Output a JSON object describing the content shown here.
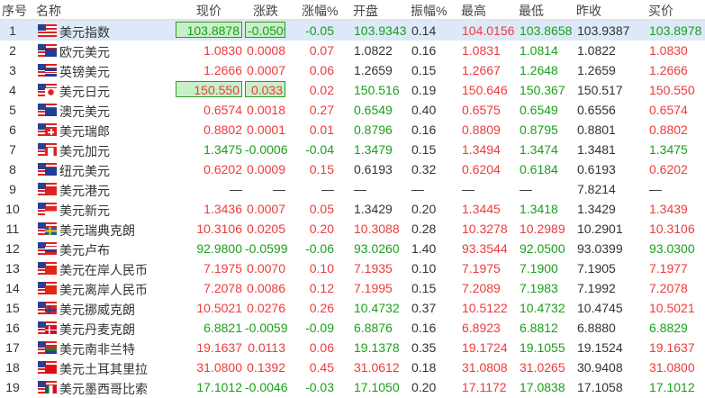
{
  "colors": {
    "up": "#ee3b3b",
    "down": "#1aa01a",
    "flat": "#333333",
    "selected_row": "#dce9f8",
    "highlight": "#c8f0c8"
  },
  "headers": {
    "no": "序号",
    "name": "名称",
    "price": "现价",
    "change": "涨跌",
    "pct": "涨幅%",
    "open": "开盘",
    "amp": "振幅%",
    "high": "最高",
    "low": "最低",
    "prev": "昨收",
    "bid": "买价"
  },
  "selected_row": 1,
  "rows": [
    {
      "no": "1",
      "name": "美元指数",
      "flag": "us",
      "price": "103.8878",
      "change": "-0.0509",
      "pct": "-0.05",
      "open": "103.9343",
      "amp": "0.14",
      "high": "104.0156",
      "low": "103.8658",
      "prev": "103.9387",
      "bid": "103.8978",
      "highlight": true
    },
    {
      "no": "2",
      "name": "欧元美元",
      "flag": "eu",
      "price": "1.0830",
      "change": "0.0008",
      "pct": "0.07",
      "open": "1.0822",
      "amp": "0.16",
      "high": "1.0831",
      "low": "1.0814",
      "prev": "1.0822",
      "bid": "1.0830"
    },
    {
      "no": "3",
      "name": "英镑美元",
      "flag": "gb",
      "price": "1.2666",
      "change": "0.0007",
      "pct": "0.06",
      "open": "1.2659",
      "amp": "0.15",
      "high": "1.2667",
      "low": "1.2648",
      "prev": "1.2659",
      "bid": "1.2666"
    },
    {
      "no": "4",
      "name": "美元日元",
      "flag": "jp",
      "price": "150.550",
      "change": "0.033",
      "pct": "0.02",
      "open": "150.516",
      "amp": "0.19",
      "high": "150.646",
      "low": "150.367",
      "prev": "150.517",
      "bid": "150.550",
      "highlight": true
    },
    {
      "no": "5",
      "name": "澳元美元",
      "flag": "au",
      "price": "0.6574",
      "change": "0.0018",
      "pct": "0.27",
      "open": "0.6549",
      "amp": "0.40",
      "high": "0.6575",
      "low": "0.6549",
      "prev": "0.6556",
      "bid": "0.6574"
    },
    {
      "no": "6",
      "name": "美元瑞郎",
      "flag": "ch",
      "price": "0.8802",
      "change": "0.0001",
      "pct": "0.01",
      "open": "0.8796",
      "amp": "0.16",
      "high": "0.8809",
      "low": "0.8795",
      "prev": "0.8801",
      "bid": "0.8802"
    },
    {
      "no": "7",
      "name": "美元加元",
      "flag": "ca",
      "price": "1.3475",
      "change": "-0.0006",
      "pct": "-0.04",
      "open": "1.3479",
      "amp": "0.15",
      "high": "1.3494",
      "low": "1.3474",
      "prev": "1.3481",
      "bid": "1.3475"
    },
    {
      "no": "8",
      "name": "纽元美元",
      "flag": "nz",
      "price": "0.6202",
      "change": "0.0009",
      "pct": "0.15",
      "open": "0.6193",
      "amp": "0.32",
      "high": "0.6204",
      "low": "0.6184",
      "prev": "0.6193",
      "bid": "0.6202"
    },
    {
      "no": "9",
      "name": "美元港元",
      "flag": "hk",
      "price": "—",
      "change": "—",
      "pct": "—",
      "open": "—",
      "amp": "—",
      "high": "—",
      "low": "—",
      "prev": "7.8214",
      "bid": "—"
    },
    {
      "no": "10",
      "name": "美元新元",
      "flag": "sg",
      "price": "1.3436",
      "change": "0.0007",
      "pct": "0.05",
      "open": "1.3429",
      "amp": "0.20",
      "high": "1.3445",
      "low": "1.3418",
      "prev": "1.3429",
      "bid": "1.3439"
    },
    {
      "no": "11",
      "name": "美元瑞典克朗",
      "flag": "se",
      "price": "10.3106",
      "change": "0.0205",
      "pct": "0.20",
      "open": "10.3088",
      "amp": "0.28",
      "high": "10.3278",
      "low": "10.2989",
      "prev": "10.2901",
      "bid": "10.3106"
    },
    {
      "no": "12",
      "name": "美元卢布",
      "flag": "ru",
      "price": "92.9800",
      "change": "-0.0599",
      "pct": "-0.06",
      "open": "93.0260",
      "amp": "1.40",
      "high": "93.3544",
      "low": "92.0500",
      "prev": "93.0399",
      "bid": "93.0300"
    },
    {
      "no": "13",
      "name": "美元在岸人民币",
      "flag": "cn",
      "price": "7.1975",
      "change": "0.0070",
      "pct": "0.10",
      "open": "7.1935",
      "amp": "0.10",
      "high": "7.1975",
      "low": "7.1900",
      "prev": "7.1905",
      "bid": "7.1977"
    },
    {
      "no": "14",
      "name": "美元离岸人民币",
      "flag": "cn",
      "price": "7.2078",
      "change": "0.0086",
      "pct": "0.12",
      "open": "7.1995",
      "amp": "0.15",
      "high": "7.2089",
      "low": "7.1983",
      "prev": "7.1992",
      "bid": "7.2078"
    },
    {
      "no": "15",
      "name": "美元挪威克朗",
      "flag": "no",
      "price": "10.5021",
      "change": "0.0276",
      "pct": "0.26",
      "open": "10.4732",
      "amp": "0.37",
      "high": "10.5122",
      "low": "10.4732",
      "prev": "10.4745",
      "bid": "10.5021"
    },
    {
      "no": "16",
      "name": "美元丹麦克朗",
      "flag": "dk",
      "price": "6.8821",
      "change": "-0.0059",
      "pct": "-0.09",
      "open": "6.8876",
      "amp": "0.16",
      "high": "6.8923",
      "low": "6.8812",
      "prev": "6.8880",
      "bid": "6.8829"
    },
    {
      "no": "17",
      "name": "美元南非兰特",
      "flag": "za",
      "price": "19.1637",
      "change": "0.0113",
      "pct": "0.06",
      "open": "19.1378",
      "amp": "0.35",
      "high": "19.1724",
      "low": "19.1055",
      "prev": "19.1524",
      "bid": "19.1637"
    },
    {
      "no": "18",
      "name": "美元土耳其里拉",
      "flag": "tr",
      "price": "31.0800",
      "change": "0.1392",
      "pct": "0.45",
      "open": "31.0612",
      "amp": "0.18",
      "high": "31.0808",
      "low": "31.0265",
      "prev": "30.9408",
      "bid": "31.0800"
    },
    {
      "no": "19",
      "name": "美元墨西哥比索",
      "flag": "mx",
      "price": "17.1012",
      "change": "-0.0046",
      "pct": "-0.03",
      "open": "17.1050",
      "amp": "0.20",
      "high": "17.1172",
      "low": "17.0838",
      "prev": "17.1058",
      "bid": "17.1012"
    }
  ]
}
